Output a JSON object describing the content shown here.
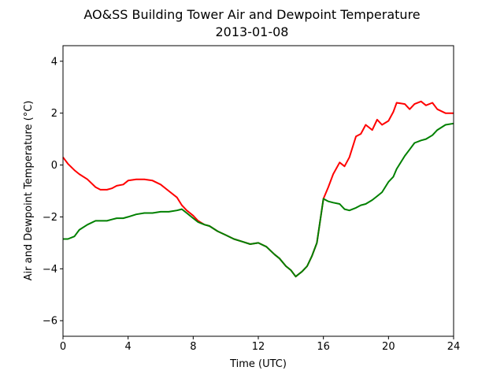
{
  "chart_data": {
    "type": "line",
    "title": "AO&SS Building Tower Air and Dewpoint Temperature",
    "subtitle": "2013-01-08",
    "xlabel": "Time (UTC)",
    "ylabel": "Air and Dewpoint Temperature (°C)",
    "xlim": [
      0,
      24
    ],
    "ylim": [
      -6.6,
      4.6
    ],
    "xticks": [
      0,
      4,
      8,
      12,
      16,
      20,
      24
    ],
    "yticks": [
      -6,
      -4,
      -2,
      0,
      2,
      4
    ],
    "grid": false,
    "series": [
      {
        "color": "#ff0000",
        "x": [
          0,
          0.3,
          0.7,
          1,
          1.5,
          2,
          2.3,
          2.7,
          3,
          3.3,
          3.7,
          4,
          4.5,
          5,
          5.5,
          6,
          6.5,
          7,
          7.3,
          7.6,
          8,
          8.3,
          8.7,
          9,
          9.5,
          10,
          10.5,
          11,
          11.5,
          12,
          12.5,
          13,
          13.3,
          13.7,
          14,
          14.3,
          14.7,
          15,
          15.3,
          15.6,
          16,
          16.3,
          16.6,
          17,
          17.3,
          17.6,
          18,
          18.3,
          18.6,
          19,
          19.3,
          19.6,
          20,
          20.3,
          20.5,
          21,
          21.3,
          21.6,
          22,
          22.3,
          22.7,
          23,
          23.5,
          24
        ],
        "values": [
          0.3,
          0.05,
          -0.2,
          -0.35,
          -0.55,
          -0.85,
          -0.95,
          -0.95,
          -0.9,
          -0.8,
          -0.75,
          -0.6,
          -0.55,
          -0.55,
          -0.6,
          -0.75,
          -1.0,
          -1.25,
          -1.55,
          -1.75,
          -1.95,
          -2.15,
          -2.3,
          -2.35,
          -2.55,
          -2.7,
          -2.85,
          -2.95,
          -3.05,
          -3.0,
          -3.15,
          -3.45,
          -3.6,
          -3.9,
          -4.05,
          -4.3,
          -4.1,
          -3.9,
          -3.5,
          -3.0,
          -1.3,
          -0.85,
          -0.35,
          0.1,
          -0.05,
          0.3,
          1.1,
          1.2,
          1.55,
          1.35,
          1.75,
          1.55,
          1.7,
          2.05,
          2.4,
          2.35,
          2.15,
          2.35,
          2.45,
          2.3,
          2.4,
          2.15,
          2.0,
          2.0
        ]
      },
      {
        "color": "#008000",
        "x": [
          0,
          0.3,
          0.7,
          1,
          1.5,
          2,
          2.3,
          2.7,
          3,
          3.3,
          3.7,
          4,
          4.5,
          5,
          5.5,
          6,
          6.5,
          7,
          7.3,
          7.6,
          8,
          8.3,
          8.7,
          9,
          9.5,
          10,
          10.5,
          11,
          11.5,
          12,
          12.5,
          13,
          13.3,
          13.7,
          14,
          14.3,
          14.7,
          15,
          15.3,
          15.6,
          16,
          16.3,
          16.6,
          17,
          17.3,
          17.6,
          18,
          18.3,
          18.6,
          19,
          19.3,
          19.6,
          20,
          20.3,
          20.5,
          21,
          21.3,
          21.6,
          22,
          22.3,
          22.7,
          23,
          23.5,
          24
        ],
        "values": [
          -2.85,
          -2.85,
          -2.75,
          -2.5,
          -2.3,
          -2.15,
          -2.15,
          -2.15,
          -2.1,
          -2.05,
          -2.05,
          -2.0,
          -1.9,
          -1.85,
          -1.85,
          -1.8,
          -1.8,
          -1.75,
          -1.7,
          -1.85,
          -2.05,
          -2.2,
          -2.3,
          -2.35,
          -2.55,
          -2.7,
          -2.85,
          -2.95,
          -3.05,
          -3.0,
          -3.15,
          -3.45,
          -3.6,
          -3.9,
          -4.05,
          -4.3,
          -4.1,
          -3.9,
          -3.5,
          -3.0,
          -1.3,
          -1.4,
          -1.45,
          -1.5,
          -1.7,
          -1.75,
          -1.65,
          -1.55,
          -1.5,
          -1.35,
          -1.2,
          -1.05,
          -0.65,
          -0.45,
          -0.15,
          0.35,
          0.6,
          0.85,
          0.95,
          1.0,
          1.15,
          1.35,
          1.55,
          1.6
        ]
      }
    ]
  }
}
